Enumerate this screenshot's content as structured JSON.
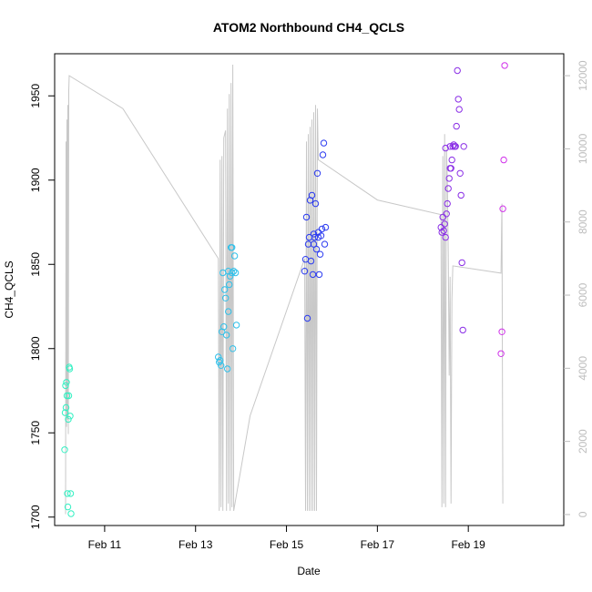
{
  "chart_data": {
    "type": "scatter",
    "title": "ATOM2 Northbound CH4_QCLS",
    "xlabel": "Date",
    "ylabel": "CH4_QCLS",
    "x_range_days_feb": [
      9.9,
      21.1
    ],
    "ylim": [
      1695,
      1975
    ],
    "y2lim": [
      -300,
      12600
    ],
    "x_ticks": [
      {
        "label": "Feb 11",
        "value": 11
      },
      {
        "label": "Feb 13",
        "value": 13
      },
      {
        "label": "Feb 15",
        "value": 15
      },
      {
        "label": "Feb 17",
        "value": 17
      },
      {
        "label": "Feb 19",
        "value": 19
      }
    ],
    "y_ticks": [
      1700,
      1750,
      1800,
      1850,
      1900,
      1950
    ],
    "y2_ticks": [
      0,
      2000,
      4000,
      6000,
      8000,
      10000,
      12000
    ],
    "colors": {
      "axis": "#000000",
      "altitude_line": "#c8c8c8",
      "right_axis": "#bdbdbd"
    },
    "secondary_series": {
      "axis": "right",
      "color": "#c8c8c8",
      "points": [
        [
          10.14,
          12
        ],
        [
          10.15,
          10200
        ],
        [
          10.16,
          2400
        ],
        [
          10.17,
          10800
        ],
        [
          10.18,
          2600
        ],
        [
          10.19,
          11200
        ],
        [
          10.2,
          2200
        ],
        [
          10.21,
          11600
        ],
        [
          10.22,
          12000
        ],
        [
          11.4,
          11100
        ],
        [
          13.5,
          7000
        ],
        [
          13.52,
          100
        ],
        [
          13.54,
          9700
        ],
        [
          13.56,
          200
        ],
        [
          13.58,
          9800
        ],
        [
          13.6,
          100
        ],
        [
          13.62,
          10300
        ],
        [
          13.64,
          10400
        ],
        [
          13.66,
          10500
        ],
        [
          13.68,
          100
        ],
        [
          13.7,
          11100
        ],
        [
          13.72,
          300
        ],
        [
          13.74,
          11500
        ],
        [
          13.76,
          100
        ],
        [
          13.78,
          11800
        ],
        [
          13.8,
          200
        ],
        [
          13.82,
          12300
        ],
        [
          13.84,
          100
        ],
        [
          14.2,
          2700
        ],
        [
          15.4,
          7000
        ],
        [
          15.42,
          100
        ],
        [
          15.44,
          10200
        ],
        [
          15.46,
          100
        ],
        [
          15.48,
          10400
        ],
        [
          15.5,
          100
        ],
        [
          15.52,
          10600
        ],
        [
          15.54,
          100
        ],
        [
          15.56,
          10800
        ],
        [
          15.58,
          100
        ],
        [
          15.6,
          11000
        ],
        [
          15.62,
          100
        ],
        [
          15.64,
          11200
        ],
        [
          15.66,
          100
        ],
        [
          15.68,
          11100
        ],
        [
          15.7,
          9700
        ],
        [
          17.0,
          8600
        ],
        [
          18.4,
          8200
        ],
        [
          18.42,
          200
        ],
        [
          18.44,
          9800
        ],
        [
          18.46,
          300
        ],
        [
          18.48,
          10400
        ],
        [
          18.5,
          200
        ],
        [
          18.52,
          10000
        ],
        [
          18.54,
          9100
        ],
        [
          18.56,
          7100
        ],
        [
          18.58,
          3800
        ],
        [
          18.6,
          6500
        ],
        [
          18.62,
          300
        ],
        [
          18.64,
          5900
        ],
        [
          18.66,
          6800
        ],
        [
          19.72,
          6600
        ],
        [
          19.74,
          8500
        ],
        [
          19.76,
          300
        ]
      ]
    },
    "series": [
      {
        "color": "#33f0c2",
        "points": [
          [
            10.12,
            1740
          ],
          [
            10.13,
            1762
          ],
          [
            10.14,
            1778
          ],
          [
            10.15,
            1765
          ],
          [
            10.16,
            1780
          ],
          [
            10.17,
            1772
          ],
          [
            10.18,
            1714
          ],
          [
            10.19,
            1706
          ],
          [
            10.2,
            1758
          ],
          [
            10.21,
            1772
          ],
          [
            10.22,
            1789
          ],
          [
            10.23,
            1788
          ],
          [
            10.24,
            1760
          ],
          [
            10.25,
            1714
          ],
          [
            10.26,
            1702
          ]
        ]
      },
      {
        "color": "#2ec0ea",
        "points": [
          [
            13.5,
            1795
          ],
          [
            13.52,
            1792
          ],
          [
            13.54,
            1793
          ],
          [
            13.56,
            1790
          ],
          [
            13.58,
            1810
          ],
          [
            13.6,
            1845
          ],
          [
            13.62,
            1813
          ],
          [
            13.64,
            1835
          ],
          [
            13.66,
            1830
          ],
          [
            13.68,
            1808
          ],
          [
            13.7,
            1788
          ],
          [
            13.72,
            1822
          ],
          [
            13.74,
            1838
          ],
          [
            13.76,
            1843
          ],
          [
            13.78,
            1860
          ],
          [
            13.8,
            1860
          ],
          [
            13.82,
            1800
          ],
          [
            13.84,
            1846
          ],
          [
            13.86,
            1855
          ],
          [
            13.88,
            1845
          ],
          [
            13.9,
            1814
          ],
          [
            13.72,
            1846
          ],
          [
            13.8,
            1845
          ]
        ]
      },
      {
        "color": "#2c3cf0",
        "points": [
          [
            15.4,
            1846
          ],
          [
            15.42,
            1853
          ],
          [
            15.44,
            1878
          ],
          [
            15.46,
            1818
          ],
          [
            15.48,
            1862
          ],
          [
            15.5,
            1866
          ],
          [
            15.52,
            1888
          ],
          [
            15.54,
            1852
          ],
          [
            15.56,
            1891
          ],
          [
            15.58,
            1844
          ],
          [
            15.6,
            1862
          ],
          [
            15.62,
            1866
          ],
          [
            15.64,
            1886
          ],
          [
            15.66,
            1859
          ],
          [
            15.68,
            1904
          ],
          [
            15.7,
            1869
          ],
          [
            15.72,
            1844
          ],
          [
            15.74,
            1856
          ],
          [
            15.76,
            1867
          ],
          [
            15.78,
            1871
          ],
          [
            15.8,
            1915
          ],
          [
            15.82,
            1922
          ],
          [
            15.84,
            1862
          ],
          [
            15.86,
            1872
          ],
          [
            15.6,
            1868
          ],
          [
            15.7,
            1866
          ]
        ]
      },
      {
        "color": "#8a2ee6",
        "points": [
          [
            18.4,
            1872
          ],
          [
            18.42,
            1869
          ],
          [
            18.44,
            1878
          ],
          [
            18.46,
            1870
          ],
          [
            18.48,
            1874
          ],
          [
            18.5,
            1866
          ],
          [
            18.52,
            1880
          ],
          [
            18.54,
            1886
          ],
          [
            18.56,
            1895
          ],
          [
            18.58,
            1901
          ],
          [
            18.6,
            1907
          ],
          [
            18.62,
            1907
          ],
          [
            18.64,
            1912
          ],
          [
            18.66,
            1920
          ],
          [
            18.68,
            1921
          ],
          [
            18.7,
            1920
          ],
          [
            18.72,
            1920
          ],
          [
            18.74,
            1932
          ],
          [
            18.76,
            1965
          ],
          [
            18.78,
            1948
          ],
          [
            18.8,
            1942
          ],
          [
            18.82,
            1904
          ],
          [
            18.84,
            1891
          ],
          [
            18.86,
            1851
          ],
          [
            18.88,
            1811
          ],
          [
            18.9,
            1920
          ],
          [
            18.5,
            1919
          ],
          [
            18.6,
            1920
          ]
        ]
      },
      {
        "color": "#d030ea",
        "points": [
          [
            19.72,
            1797
          ],
          [
            19.74,
            1810
          ],
          [
            19.76,
            1883
          ],
          [
            19.78,
            1912
          ],
          [
            19.8,
            1968
          ]
        ]
      }
    ]
  }
}
